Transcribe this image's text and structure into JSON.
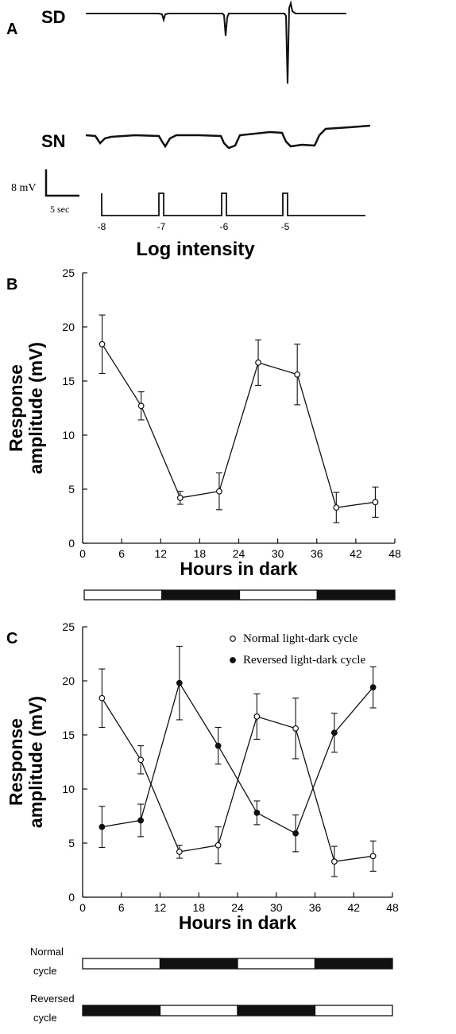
{
  "panel_a": {
    "label": "A",
    "trace_labels": [
      "SD",
      "SN"
    ],
    "scale_bar": {
      "voltage_label": "8 mV",
      "time_label": "5 sec"
    },
    "stimulus_labels": [
      "-8",
      "-7",
      "-6",
      "-5"
    ],
    "xlabel": "Log intensity"
  },
  "chart_data": [
    {
      "panel": "B",
      "type": "line",
      "xlabel": "Hours in dark",
      "ylabel": "Response amplitude (mV)",
      "xlim": [
        0,
        48
      ],
      "ylim": [
        0,
        25
      ],
      "xticks": [
        0,
        6,
        12,
        18,
        24,
        30,
        36,
        42,
        48
      ],
      "yticks": [
        0,
        5,
        10,
        15,
        20,
        25
      ],
      "grid": false,
      "series": [
        {
          "marker": "open",
          "x": [
            3,
            9,
            15,
            21,
            27,
            33,
            39,
            45
          ],
          "y": [
            18.4,
            12.7,
            4.2,
            4.8,
            16.7,
            15.6,
            3.3,
            3.8
          ],
          "err": [
            2.7,
            1.3,
            0.6,
            1.7,
            2.1,
            2.8,
            1.4,
            1.4
          ]
        }
      ],
      "cycle_bars": [
        {
          "label": "",
          "pattern": [
            "light",
            "dark",
            "light",
            "dark"
          ]
        }
      ]
    },
    {
      "panel": "C",
      "type": "line",
      "xlabel": "Hours in dark",
      "ylabel": "Response amplitude (mV)",
      "xlim": [
        0,
        48
      ],
      "ylim": [
        0,
        25
      ],
      "xticks": [
        0,
        6,
        12,
        18,
        24,
        30,
        36,
        42,
        48
      ],
      "yticks": [
        0,
        5,
        10,
        15,
        20,
        25
      ],
      "grid": false,
      "legend": "top-right",
      "series": [
        {
          "name": "Normal light-dark cycle",
          "marker": "open",
          "x": [
            3,
            9,
            15,
            21,
            27,
            33,
            39,
            45
          ],
          "y": [
            18.4,
            12.7,
            4.2,
            4.8,
            16.7,
            15.6,
            3.3,
            3.8
          ],
          "err": [
            2.7,
            1.3,
            0.6,
            1.7,
            2.1,
            2.8,
            1.4,
            1.4
          ]
        },
        {
          "name": "Reversed light-dark cycle",
          "marker": "filled",
          "x": [
            3,
            9,
            15,
            21,
            27,
            33,
            39,
            45
          ],
          "y": [
            6.5,
            7.1,
            19.8,
            14.0,
            7.8,
            5.9,
            15.2,
            19.4
          ],
          "err": [
            1.9,
            1.5,
            3.4,
            1.7,
            1.1,
            1.7,
            1.8,
            1.9
          ]
        }
      ],
      "cycle_bars": [
        {
          "label": "Normal cycle",
          "pattern": [
            "light",
            "dark",
            "light",
            "dark"
          ]
        },
        {
          "label": "Reversed cycle",
          "pattern": [
            "dark",
            "light",
            "dark",
            "light"
          ]
        }
      ]
    }
  ]
}
